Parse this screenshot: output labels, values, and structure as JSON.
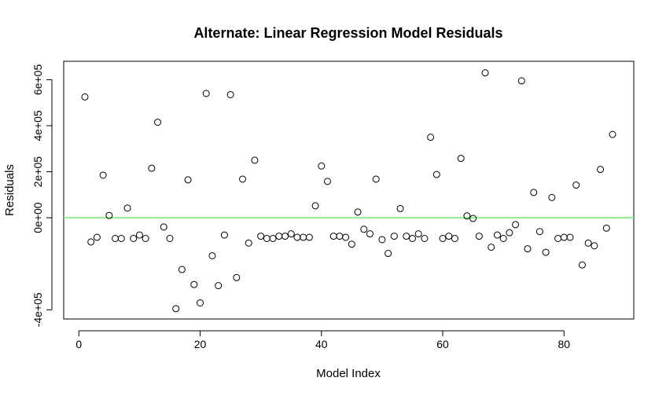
{
  "chart_data": {
    "type": "scatter",
    "title": "Alternate: Linear Regression Model Residuals",
    "xlabel": "Model Index",
    "ylabel": "Residuals",
    "xlim": [
      -2.5,
      91.5
    ],
    "ylim": [
      -440000,
      680000
    ],
    "x_ticks": [
      0,
      20,
      40,
      60,
      80
    ],
    "x_tick_labels": [
      "0",
      "20",
      "40",
      "60",
      "80"
    ],
    "y_ticks": [
      -400000,
      0,
      200000,
      400000,
      600000
    ],
    "y_tick_labels": [
      "-4e+05",
      "0e+00",
      "2e+05",
      "4e+05",
      "6e+05"
    ],
    "grid": false,
    "reference_line": {
      "y": 0,
      "color": "#90ee90"
    },
    "marker": "open-circle",
    "x": [
      1,
      2,
      3,
      4,
      5,
      6,
      7,
      8,
      9,
      10,
      11,
      12,
      13,
      14,
      15,
      16,
      17,
      18,
      19,
      20,
      21,
      22,
      23,
      24,
      25,
      26,
      27,
      28,
      29,
      30,
      31,
      32,
      33,
      34,
      35,
      36,
      37,
      38,
      39,
      40,
      41,
      42,
      43,
      44,
      45,
      46,
      47,
      48,
      49,
      50,
      51,
      52,
      53,
      54,
      55,
      56,
      57,
      58,
      59,
      60,
      61,
      62,
      63,
      64,
      65,
      66,
      67,
      68,
      69,
      70,
      71,
      72,
      73,
      74,
      75,
      76,
      77,
      78,
      79,
      80,
      81,
      82,
      83,
      84,
      85,
      86,
      87,
      88
    ],
    "y": [
      525000,
      -105000,
      -85000,
      185000,
      10000,
      -90000,
      -90000,
      42000,
      -90000,
      -75000,
      -90000,
      215000,
      415000,
      -40000,
      -90000,
      -395000,
      -225000,
      165000,
      -290000,
      -370000,
      540000,
      -165000,
      -295000,
      -75000,
      535000,
      -260000,
      168000,
      -110000,
      250000,
      -80000,
      -90000,
      -90000,
      -80000,
      -80000,
      -70000,
      -85000,
      -85000,
      -85000,
      52000,
      225000,
      158000,
      -80000,
      -80000,
      -85000,
      -115000,
      25000,
      -50000,
      -70000,
      168000,
      -95000,
      -155000,
      -80000,
      40000,
      -80000,
      -90000,
      -70000,
      -90000,
      350000,
      188000,
      -90000,
      -80000,
      -90000,
      258000,
      8000,
      -3000,
      -80000,
      630000,
      -128000,
      -75000,
      -90000,
      -65000,
      -30000,
      595000,
      -135000,
      110000,
      -60000,
      -150000,
      88000,
      -90000,
      -85000,
      -85000,
      142000,
      -205000,
      -110000,
      -122000,
      210000,
      -45000,
      362000
    ]
  }
}
